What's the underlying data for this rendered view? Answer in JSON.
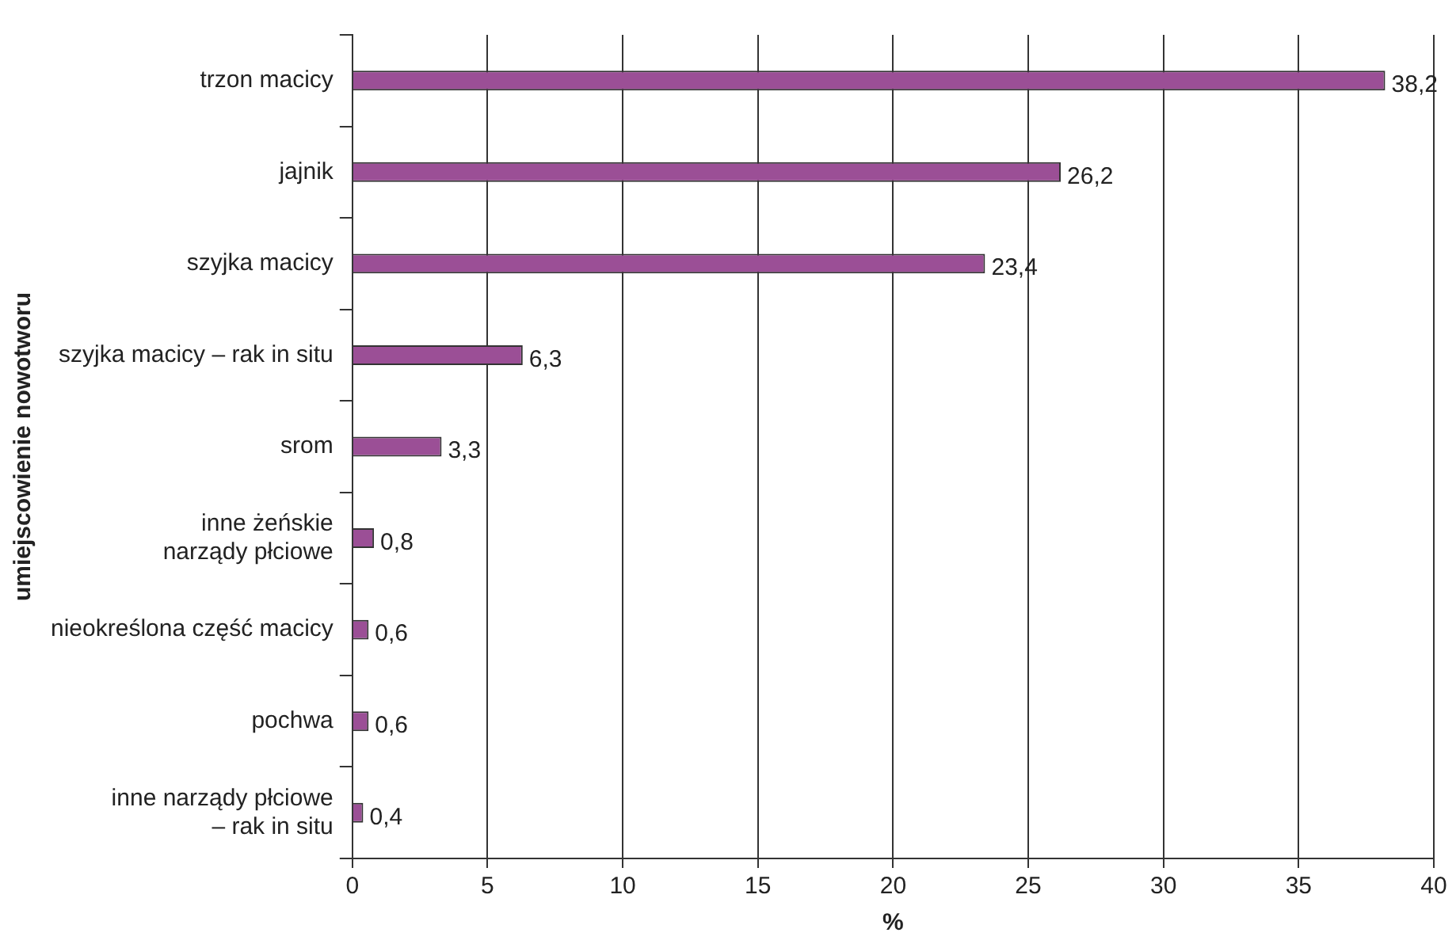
{
  "chart_data": {
    "type": "bar",
    "orientation": "horizontal",
    "ylabel": "umiejscowienie nowotworu",
    "xlabel": "%",
    "categories": [
      "trzon macicy",
      "jajnik",
      "szyjka macicy",
      "szyjka macicy – rak in situ",
      "srom",
      "inne żeńskie\nnarządy płciowe",
      "nieokreślona część macicy",
      "pochwa",
      "inne narządy płciowe\n– rak in situ"
    ],
    "values": [
      38.2,
      26.2,
      23.4,
      6.3,
      3.3,
      0.8,
      0.6,
      0.6,
      0.4
    ],
    "value_labels": [
      "38,2",
      "26,2",
      "23,4",
      "6,3",
      "3,3",
      "0,8",
      "0,6",
      "0,6",
      "0,4"
    ],
    "color": "#9b4f96",
    "xlim": [
      0,
      40
    ],
    "xticks": [
      0,
      5,
      10,
      15,
      20,
      25,
      30,
      35,
      40
    ],
    "grid": "x",
    "legend": false
  }
}
